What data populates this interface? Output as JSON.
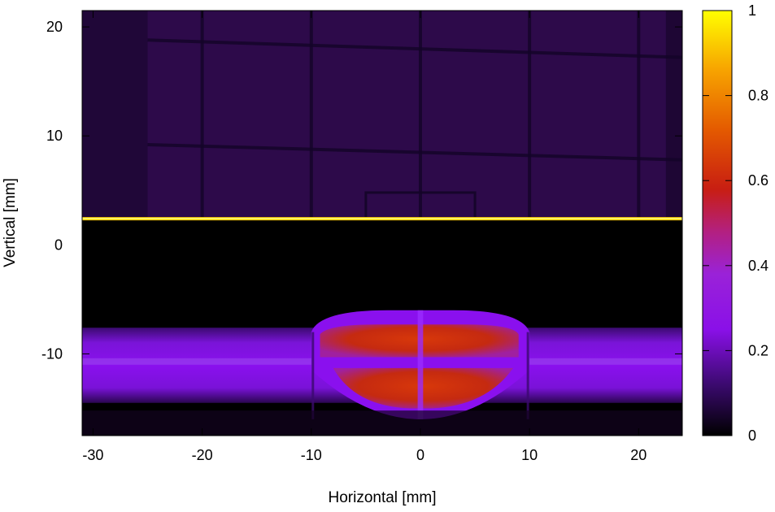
{
  "chart_data": {
    "type": "heatmap",
    "title": "",
    "xlabel": "Horizontal [mm]",
    "ylabel": "Vertical [mm]",
    "xlim": [
      -31,
      24
    ],
    "ylim": [
      -17.5,
      21.5
    ],
    "x_ticks": [
      -30,
      -20,
      -10,
      0,
      10,
      20
    ],
    "x_tick_labels": [
      "-30",
      "-20",
      "-10",
      "0",
      "10",
      "20"
    ],
    "y_ticks": [
      -10,
      0,
      10,
      20
    ],
    "y_tick_labels": [
      "-10",
      "0",
      "10",
      "20"
    ],
    "colorbar": {
      "range": [
        0,
        1
      ],
      "ticks": [
        0,
        0.2,
        0.4,
        0.6,
        0.8,
        1
      ],
      "tick_labels": [
        "0",
        "0.2",
        "0.4",
        "0.6",
        "0.8",
        "1"
      ],
      "colormap": [
        "#000000",
        "#3b0a6f",
        "#8a10e8",
        "#a62fb0",
        "#c81e12",
        "#e45a00",
        "#f7a300",
        "#ffff00"
      ]
    },
    "grid": false,
    "regions": {
      "upper_background_level": 0.07,
      "dark_gap_level": 0.0,
      "bright_line": {
        "y": 2.4,
        "x_range": [
          -31,
          24
        ],
        "level": 1.0
      },
      "beam_wing_level": 0.18,
      "beam_core_level": 0.6,
      "beam_core_x_range": [
        -10,
        10
      ],
      "beam_wing_y_range": [
        -14.5,
        -7.6
      ],
      "beam_core_y_range": [
        -16,
        -6
      ]
    }
  }
}
